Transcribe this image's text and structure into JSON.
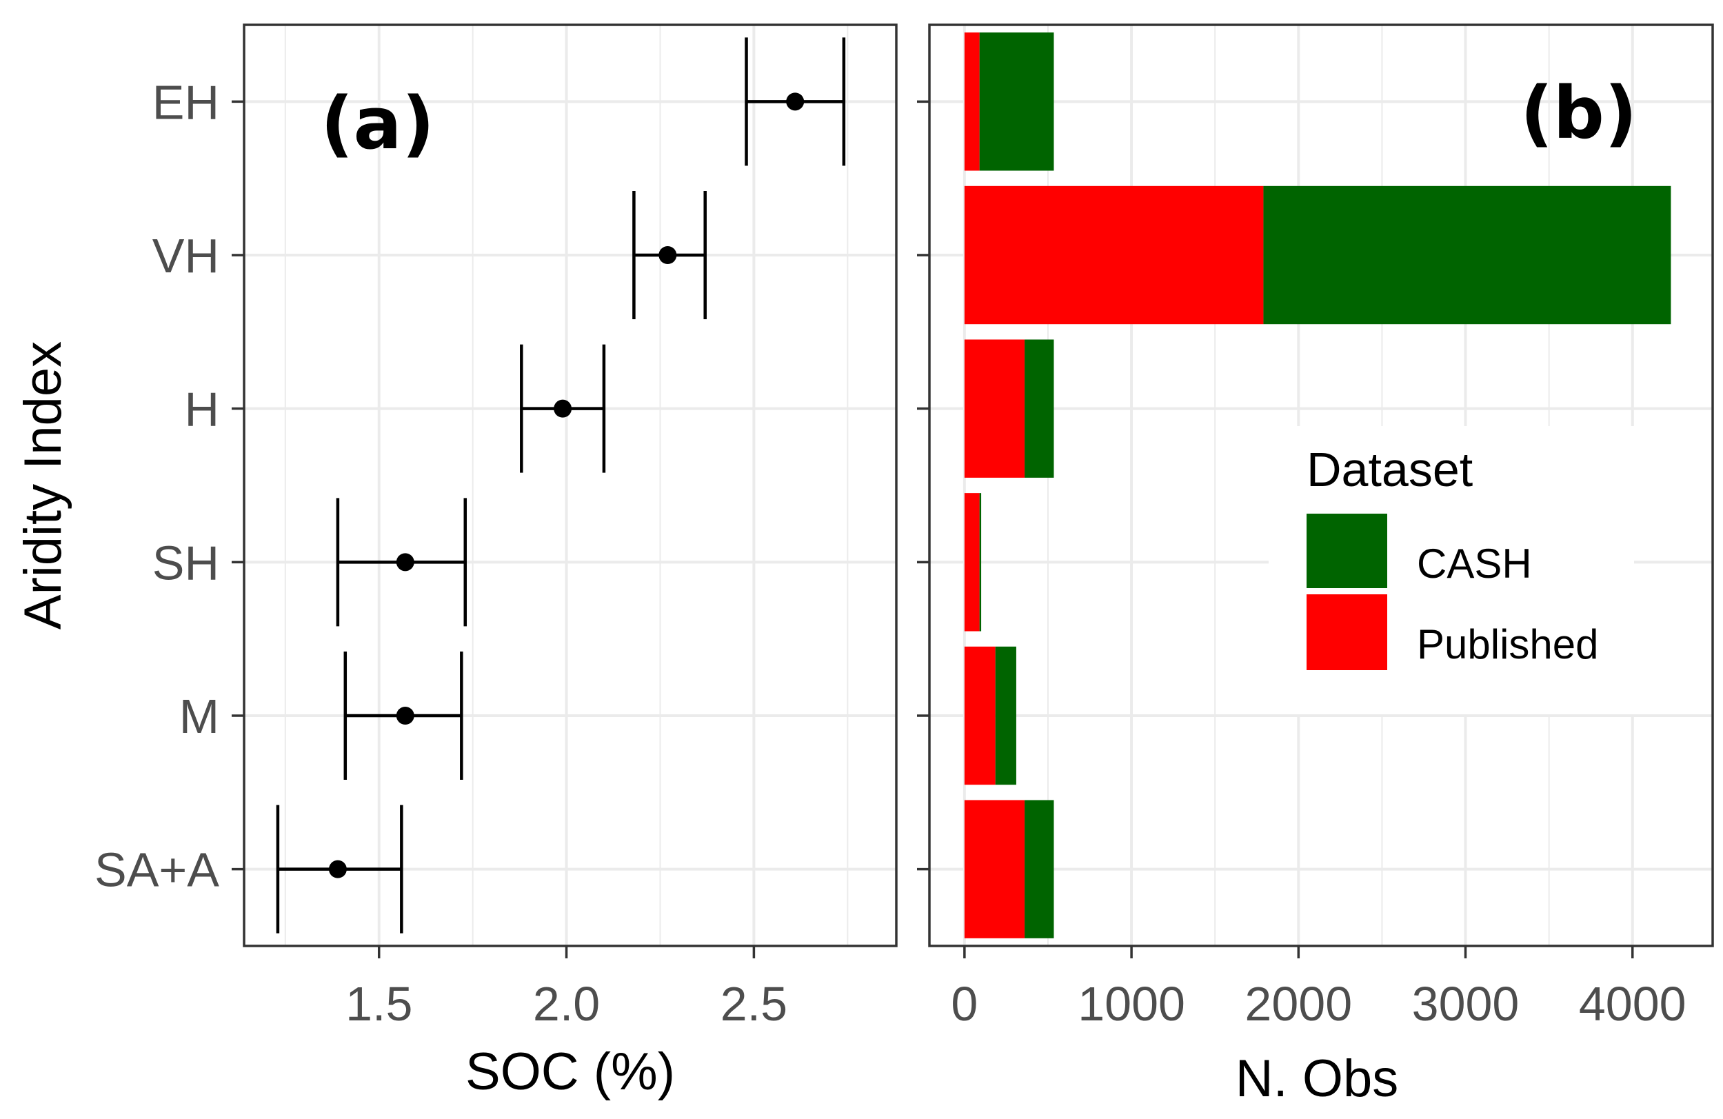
{
  "chart_data": [
    {
      "panel": "(a)",
      "type": "scatter",
      "title": "",
      "xlabel": "SOC (%)",
      "ylabel": "Aridity Index",
      "xlim": [
        1.14,
        2.88
      ],
      "xticks": [
        1.5,
        2.0,
        2.5
      ],
      "xtick_labels": [
        "1.5",
        "2.0",
        "2.5"
      ],
      "categories": [
        "EH",
        "VH",
        "H",
        "SH",
        "M",
        "SA+A"
      ],
      "points": [
        {
          "category": "EH",
          "mean": 2.61,
          "low": 2.48,
          "high": 2.74
        },
        {
          "category": "VH",
          "mean": 2.27,
          "low": 2.18,
          "high": 2.37
        },
        {
          "category": "H",
          "mean": 1.99,
          "low": 1.88,
          "high": 2.1
        },
        {
          "category": "SH",
          "mean": 1.57,
          "low": 1.39,
          "high": 1.73
        },
        {
          "category": "M",
          "mean": 1.57,
          "low": 1.41,
          "high": 1.72
        },
        {
          "category": "SA+A",
          "mean": 1.39,
          "low": 1.23,
          "high": 1.56
        }
      ],
      "grid": true
    },
    {
      "panel": "(b)",
      "type": "bar",
      "orientation": "horizontal",
      "stacked": true,
      "title": "",
      "xlabel": "N. Obs",
      "xlim": [
        -210,
        4480
      ],
      "xticks": [
        0,
        1000,
        2000,
        3000,
        4000
      ],
      "xtick_labels": [
        "0",
        "1000",
        "2000",
        "3000",
        "4000"
      ],
      "categories": [
        "EH",
        "VH",
        "H",
        "SH",
        "M",
        "SA+A"
      ],
      "series": [
        {
          "name": "Published",
          "color": "#ff0000",
          "values": [
            90,
            1790,
            360,
            90,
            185,
            360
          ]
        },
        {
          "name": "CASH",
          "color": "#006400",
          "values": [
            445,
            2440,
            175,
            10,
            125,
            175
          ]
        }
      ],
      "legend": {
        "title": "Dataset",
        "entries": [
          "CASH",
          "Published"
        ],
        "placement": "right"
      },
      "grid": true
    }
  ]
}
